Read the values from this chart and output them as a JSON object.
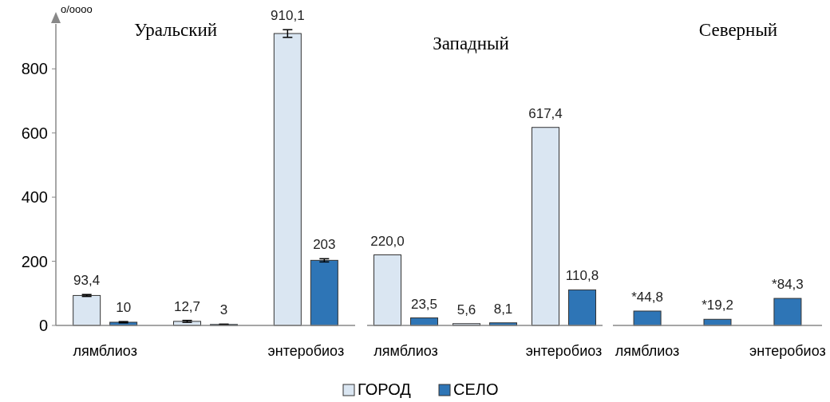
{
  "chart_data": [
    {
      "type": "bar",
      "title": "Уральский",
      "ylabel": "o/oooo",
      "categories": [
        "лямблиоз",
        null,
        "энтеробиоз"
      ],
      "ylim": [
        0,
        940
      ],
      "yticks": [
        0,
        200,
        400,
        600,
        800
      ],
      "series": [
        {
          "color": "#dae6f2",
          "values": [
            93.4,
            12.7,
            910.1
          ],
          "value_labels": [
            "93,4",
            "12,7",
            "910,1"
          ],
          "errors": [
            3,
            3,
            12
          ]
        },
        {
          "color": "#2e75b6",
          "values": [
            10,
            3,
            203
          ],
          "value_labels": [
            "10",
            "3",
            "203"
          ],
          "errors": [
            2,
            1,
            5
          ]
        }
      ]
    },
    {
      "type": "bar",
      "title": "Западный",
      "categories": [
        "лямблиоз",
        null,
        "энтеробиоз"
      ],
      "tick_labels": "x",
      "legend": "bottom",
      "series": [
        {
          "name": "ГОРОД",
          "color": "#dae6f2",
          "values": [
            220.0,
            5.6,
            617.4
          ],
          "value_labels": [
            "220,0",
            "5,6",
            "617,4"
          ]
        },
        {
          "name": "СЕЛО",
          "color": "#2e75b6",
          "values": [
            23.5,
            8.1,
            110.8
          ],
          "value_labels": [
            "23,5",
            "8,1",
            "110,8"
          ]
        }
      ]
    },
    {
      "type": "bar",
      "title": "Северный",
      "categories": [
        "лямблиоз",
        null,
        "энтеробиоз"
      ],
      "tick_labels": "x",
      "series": [
        {
          "color": "#2e75b6",
          "values": [
            44.8,
            19.2,
            84.3
          ],
          "value_labels": [
            "*44,8",
            "*19,2",
            "*84,3"
          ]
        }
      ]
    }
  ]
}
